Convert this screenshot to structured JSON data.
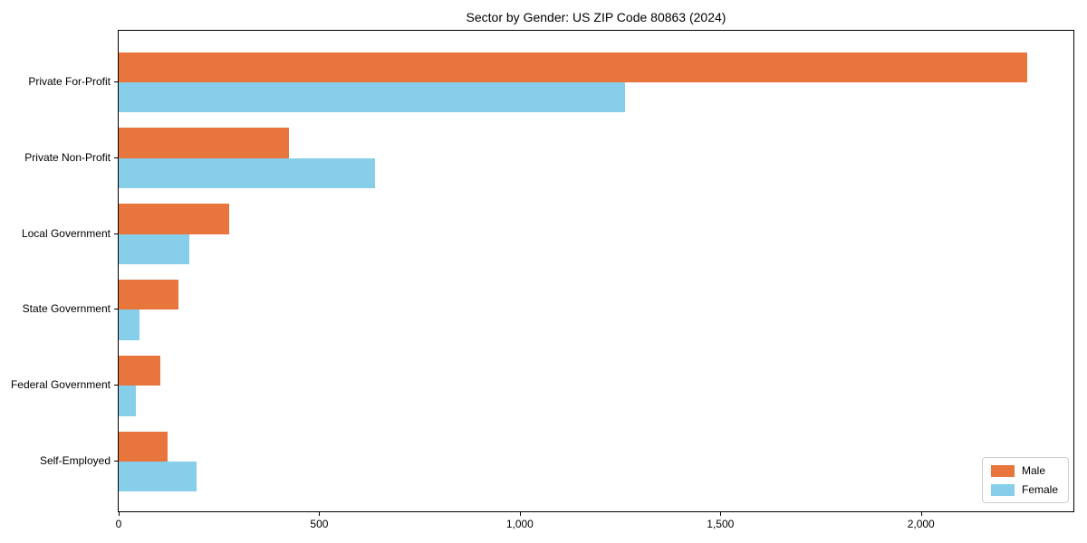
{
  "title": "Sector by Gender: US ZIP Code 80863 (2024)",
  "colors": {
    "male": "#e8763c",
    "female": "#87ceeb",
    "axis": "#000000",
    "legend_border": "#cccccc",
    "background": "#ffffff"
  },
  "chart_data": {
    "type": "bar",
    "orientation": "horizontal",
    "title": "Sector by Gender: US ZIP Code 80863 (2024)",
    "categories": [
      "Private For-Profit",
      "Private Non-Profit",
      "Local Government",
      "State Government",
      "Federal Government",
      "Self-Employed"
    ],
    "series": [
      {
        "name": "Male",
        "color": "#e8763c",
        "values": [
          2265,
          424,
          276,
          150,
          104,
          122
        ]
      },
      {
        "name": "Female",
        "color": "#87ceeb",
        "values": [
          1263,
          638,
          177,
          51,
          43,
          194
        ]
      }
    ],
    "xlabel": "",
    "ylabel": "",
    "xlim": [
      0,
      2380
    ],
    "xticks": [
      0,
      500,
      1000,
      1500,
      2000
    ],
    "xtick_labels": [
      "0",
      "500",
      "1,000",
      "1,500",
      "2,000"
    ],
    "legend_position": "lower right",
    "grid": false
  }
}
